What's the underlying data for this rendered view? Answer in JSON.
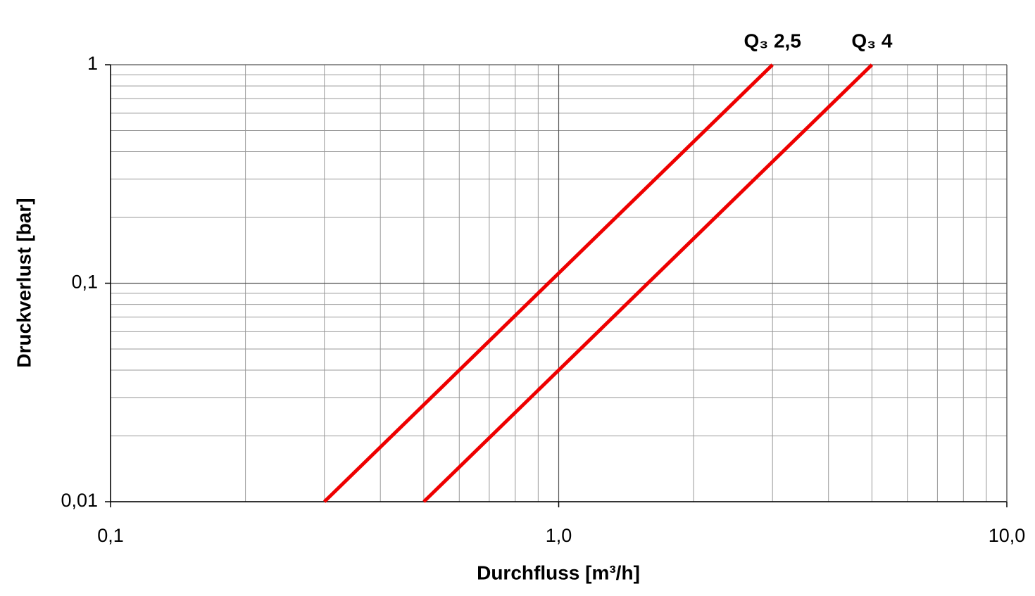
{
  "chart_data": {
    "type": "line",
    "xlabel": "Durchfluss [m³/h]",
    "ylabel": "Druckverlust [bar]",
    "log_x": true,
    "log_y": true,
    "grid": true,
    "xlim": [
      0.1,
      10
    ],
    "ylim": [
      0.01,
      1
    ],
    "xticks": [
      {
        "value": 0.1,
        "label": "0,1"
      },
      {
        "value": 1,
        "label": "1,0"
      },
      {
        "value": 10,
        "label": "10,0"
      }
    ],
    "yticks": [
      {
        "value": 0.01,
        "label": "0,01"
      },
      {
        "value": 0.1,
        "label": "0,1"
      },
      1
    ],
    "xgrid_minor": [
      0.2,
      0.3,
      0.4,
      0.5,
      0.6,
      0.7,
      0.8,
      0.9,
      2,
      3,
      4,
      5,
      6,
      7,
      8,
      9
    ],
    "ygrid_minor": [
      0.02,
      0.03,
      0.04,
      0.05,
      0.06,
      0.07,
      0.08,
      0.09,
      0.2,
      0.3,
      0.4,
      0.5,
      0.6,
      0.7,
      0.8,
      0.9
    ],
    "series": [
      {
        "name": "Q₃ 2,5",
        "color": "#ee0000",
        "x": [
          0.3,
          3.0
        ],
        "values": [
          0.01,
          1
        ]
      },
      {
        "name": "Q₃ 4",
        "color": "#ee0000",
        "x": [
          0.5,
          5.0
        ],
        "values": [
          0.01,
          1
        ]
      }
    ]
  }
}
